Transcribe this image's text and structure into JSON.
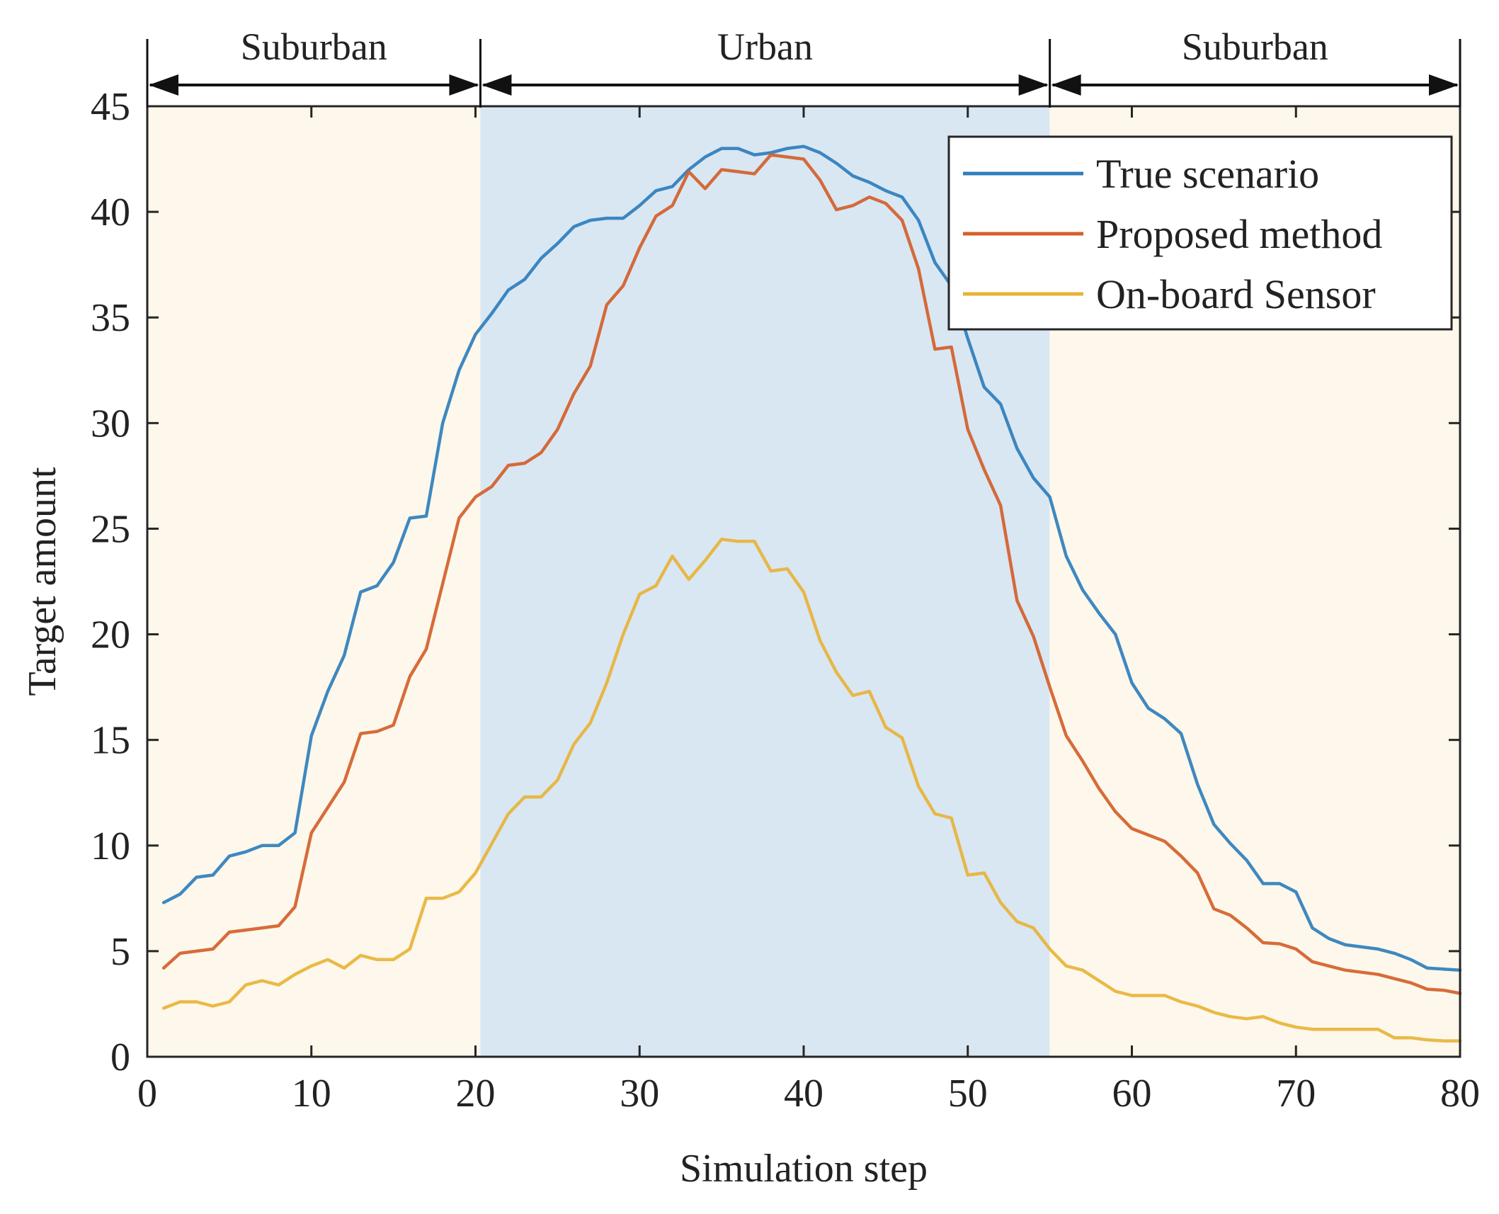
{
  "chart_data": {
    "type": "line",
    "title": "",
    "xlabel": "Simulation step",
    "ylabel": "Target amount",
    "xlim": [
      0,
      80
    ],
    "ylim": [
      0,
      45
    ],
    "xticks": [
      0,
      10,
      20,
      30,
      40,
      50,
      60,
      70,
      80
    ],
    "yticks": [
      0,
      5,
      10,
      15,
      20,
      25,
      30,
      35,
      40,
      45
    ],
    "grid": false,
    "legend_position": "top-right",
    "regions": [
      {
        "label": "Suburban",
        "x0": 0,
        "x1": 20.3,
        "color": "#fdf8eb"
      },
      {
        "label": "Urban",
        "x0": 20.3,
        "x1": 55,
        "color": "#d9e7f3"
      },
      {
        "label": "Suburban",
        "x0": 55,
        "x1": 80,
        "color": "#fdf8eb"
      }
    ],
    "x": [
      1,
      2,
      3,
      4,
      5,
      6,
      7,
      8,
      9,
      10,
      11,
      12,
      13,
      14,
      15,
      16,
      17,
      18,
      19,
      20,
      21,
      22,
      23,
      24,
      25,
      26,
      27,
      28,
      29,
      30,
      31,
      32,
      33,
      34,
      35,
      36,
      37,
      38,
      39,
      40,
      41,
      42,
      43,
      44,
      45,
      46,
      47,
      48,
      49,
      50,
      51,
      52,
      53,
      54,
      55,
      56,
      57,
      58,
      59,
      60,
      61,
      62,
      63,
      64,
      65,
      66,
      67,
      68,
      69,
      70,
      71,
      72,
      73,
      74,
      75,
      76,
      77,
      78,
      79,
      80
    ],
    "series": [
      {
        "name": "True scenario",
        "color": "#2f7ebc",
        "values": [
          7.3,
          7.7,
          8.5,
          8.6,
          9.5,
          9.7,
          10.0,
          10.0,
          10.6,
          15.2,
          17.3,
          19.0,
          22.0,
          22.3,
          23.4,
          25.5,
          25.6,
          30.0,
          32.5,
          34.2,
          35.2,
          36.3,
          36.8,
          37.8,
          38.5,
          39.3,
          39.6,
          39.7,
          39.7,
          40.3,
          41.0,
          41.2,
          42.0,
          42.6,
          43.0,
          43.0,
          42.7,
          42.8,
          43.0,
          43.1,
          42.8,
          42.3,
          41.7,
          41.4,
          41.0,
          40.7,
          39.6,
          37.6,
          36.5,
          34.0,
          31.7,
          30.9,
          28.8,
          27.4,
          26.5,
          23.7,
          22.1,
          21.0,
          20.0,
          17.7,
          16.5,
          16.0,
          15.3,
          12.9,
          11.0,
          10.1,
          9.3,
          8.2,
          8.2,
          7.8,
          6.1,
          5.6,
          5.3,
          5.2,
          5.1,
          4.9,
          4.6,
          4.2,
          4.15,
          4.1
        ]
      },
      {
        "name": "Proposed method",
        "color": "#d45f2a",
        "values": [
          4.2,
          4.9,
          5.0,
          5.1,
          5.9,
          6.0,
          6.1,
          6.2,
          7.1,
          10.6,
          11.8,
          13.0,
          15.3,
          15.4,
          15.7,
          18.0,
          19.3,
          22.4,
          25.5,
          26.5,
          27.0,
          28.0,
          28.1,
          28.6,
          29.7,
          31.4,
          32.7,
          35.6,
          36.5,
          38.3,
          39.8,
          40.3,
          41.9,
          41.1,
          42.0,
          41.9,
          41.8,
          42.7,
          42.6,
          42.5,
          41.5,
          40.1,
          40.3,
          40.7,
          40.4,
          39.6,
          37.3,
          33.5,
          33.6,
          29.7,
          27.8,
          26.1,
          21.6,
          19.9,
          17.5,
          15.2,
          14.0,
          12.7,
          11.6,
          10.8,
          10.5,
          10.2,
          9.5,
          8.7,
          7.0,
          6.7,
          6.1,
          5.4,
          5.35,
          5.1,
          4.5,
          4.3,
          4.1,
          4.0,
          3.9,
          3.7,
          3.5,
          3.2,
          3.15,
          3.0
        ]
      },
      {
        "name": "On-board Sensor",
        "color": "#e8b338",
        "values": [
          2.3,
          2.6,
          2.6,
          2.4,
          2.6,
          3.4,
          3.6,
          3.4,
          3.9,
          4.3,
          4.6,
          4.2,
          4.8,
          4.6,
          4.6,
          5.1,
          7.5,
          7.5,
          7.8,
          8.7,
          10.1,
          11.5,
          12.3,
          12.3,
          13.1,
          14.8,
          15.8,
          17.7,
          20.0,
          21.9,
          22.3,
          23.7,
          22.6,
          23.5,
          24.5,
          24.4,
          24.4,
          23.0,
          23.1,
          22.0,
          19.7,
          18.2,
          17.1,
          17.3,
          15.6,
          15.1,
          12.8,
          11.5,
          11.3,
          8.6,
          8.7,
          7.3,
          6.4,
          6.1,
          5.1,
          4.3,
          4.1,
          3.6,
          3.1,
          2.9,
          2.9,
          2.9,
          2.6,
          2.4,
          2.1,
          1.9,
          1.8,
          1.9,
          1.6,
          1.4,
          1.3,
          1.3,
          1.3,
          1.3,
          1.3,
          0.9,
          0.9,
          0.8,
          0.75,
          0.75
        ]
      }
    ]
  }
}
